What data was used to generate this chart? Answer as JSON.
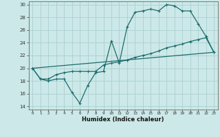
{
  "xlabel": "Humidex (Indice chaleur)",
  "bg_color": "#cce8e8",
  "grid_color": "#aad0d0",
  "line_color": "#1a6b6b",
  "xlim": [
    -0.5,
    23.5
  ],
  "ylim": [
    13.5,
    30.5
  ],
  "xticks": [
    0,
    1,
    2,
    3,
    4,
    5,
    6,
    7,
    8,
    9,
    10,
    11,
    12,
    13,
    14,
    15,
    16,
    17,
    18,
    19,
    20,
    21,
    22,
    23
  ],
  "yticks": [
    14,
    16,
    18,
    20,
    22,
    24,
    26,
    28,
    30
  ],
  "line1": {
    "x": [
      0,
      1,
      2,
      3,
      4,
      5,
      6,
      7,
      8,
      9,
      10,
      11,
      12,
      13,
      14,
      15,
      16,
      17,
      18,
      19,
      20,
      21,
      22,
      23
    ],
    "y": [
      20,
      18.3,
      18.0,
      18.3,
      18.3,
      16.2,
      14.5,
      17.3,
      19.3,
      19.5,
      24.3,
      20.8,
      26.5,
      28.8,
      29.0,
      29.3,
      29.0,
      30.0,
      29.8,
      29.0,
      29.0,
      27.0,
      25.0,
      22.5
    ]
  },
  "line2": {
    "x": [
      0,
      1,
      2,
      3,
      4,
      5,
      6,
      7,
      8,
      9,
      10,
      11,
      12,
      13,
      14,
      15,
      16,
      17,
      18,
      19,
      20,
      21,
      22,
      23
    ],
    "y": [
      20,
      18.3,
      18.3,
      19.0,
      19.3,
      19.5,
      19.5,
      19.5,
      19.5,
      20.5,
      20.8,
      21.0,
      21.3,
      21.7,
      22.0,
      22.3,
      22.7,
      23.2,
      23.5,
      23.8,
      24.2,
      24.5,
      24.8,
      22.5
    ]
  },
  "line3": {
    "x": [
      0,
      23
    ],
    "y": [
      20,
      22.5
    ]
  }
}
